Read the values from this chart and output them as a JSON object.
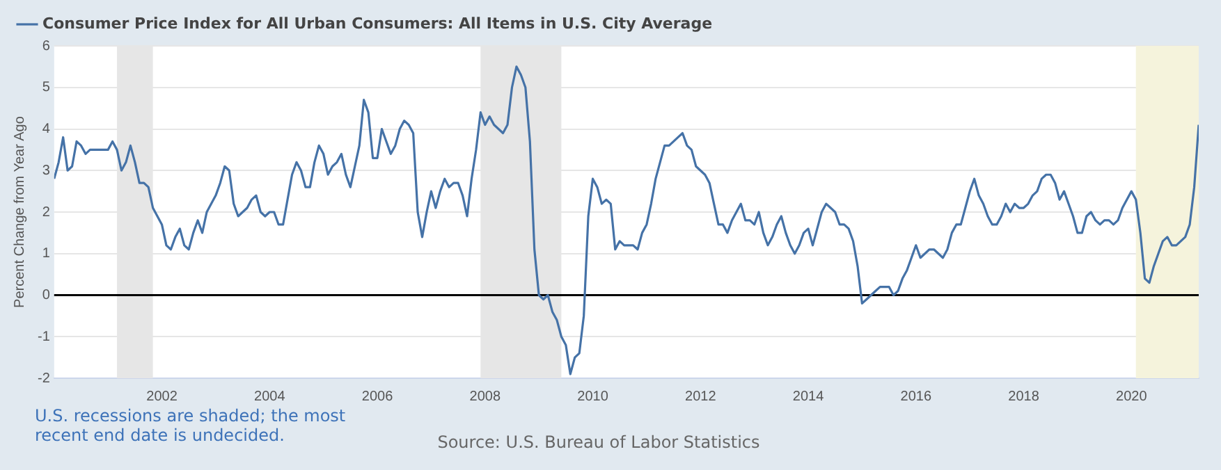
{
  "chart_data": {
    "type": "line",
    "ylabel": "Percent Change from Year Ago",
    "legend": "top left",
    "grid": "y",
    "marker": "none",
    "line_style": "solid",
    "xlim": [
      "2000-01",
      "2021-04"
    ],
    "xticks": [
      "2002",
      "2004",
      "2006",
      "2008",
      "2010",
      "2012",
      "2014",
      "2016",
      "2018",
      "2020"
    ],
    "ylim": [
      -2,
      6
    ],
    "yticks": [
      -2,
      -1,
      0,
      1,
      2,
      3,
      4,
      5,
      6
    ],
    "x": [
      "2000-01",
      "2000-02",
      "2000-03",
      "2000-04",
      "2000-05",
      "2000-06",
      "2000-07",
      "2000-08",
      "2000-09",
      "2000-10",
      "2000-11",
      "2000-12",
      "2001-01",
      "2001-02",
      "2001-03",
      "2001-04",
      "2001-05",
      "2001-06",
      "2001-07",
      "2001-08",
      "2001-09",
      "2001-10",
      "2001-11",
      "2001-12",
      "2002-01",
      "2002-02",
      "2002-03",
      "2002-04",
      "2002-05",
      "2002-06",
      "2002-07",
      "2002-08",
      "2002-09",
      "2002-10",
      "2002-11",
      "2002-12",
      "2003-01",
      "2003-02",
      "2003-03",
      "2003-04",
      "2003-05",
      "2003-06",
      "2003-07",
      "2003-08",
      "2003-09",
      "2003-10",
      "2003-11",
      "2003-12",
      "2004-01",
      "2004-02",
      "2004-03",
      "2004-04",
      "2004-05",
      "2004-06",
      "2004-07",
      "2004-08",
      "2004-09",
      "2004-10",
      "2004-11",
      "2004-12",
      "2005-01",
      "2005-02",
      "2005-03",
      "2005-04",
      "2005-05",
      "2005-06",
      "2005-07",
      "2005-08",
      "2005-09",
      "2005-10",
      "2005-11",
      "2005-12",
      "2006-01",
      "2006-02",
      "2006-03",
      "2006-04",
      "2006-05",
      "2006-06",
      "2006-07",
      "2006-08",
      "2006-09",
      "2006-10",
      "2006-11",
      "2006-12",
      "2007-01",
      "2007-02",
      "2007-03",
      "2007-04",
      "2007-05",
      "2007-06",
      "2007-07",
      "2007-08",
      "2007-09",
      "2007-10",
      "2007-11",
      "2007-12",
      "2008-01",
      "2008-02",
      "2008-03",
      "2008-04",
      "2008-05",
      "2008-06",
      "2008-07",
      "2008-08",
      "2008-09",
      "2008-10",
      "2008-11",
      "2008-12",
      "2009-01",
      "2009-02",
      "2009-03",
      "2009-04",
      "2009-05",
      "2009-06",
      "2009-07",
      "2009-08",
      "2009-09",
      "2009-10",
      "2009-11",
      "2009-12",
      "2010-01",
      "2010-02",
      "2010-03",
      "2010-04",
      "2010-05",
      "2010-06",
      "2010-07",
      "2010-08",
      "2010-09",
      "2010-10",
      "2010-11",
      "2010-12",
      "2011-01",
      "2011-02",
      "2011-03",
      "2011-04",
      "2011-05",
      "2011-06",
      "2011-07",
      "2011-08",
      "2011-09",
      "2011-10",
      "2011-11",
      "2011-12",
      "2012-01",
      "2012-02",
      "2012-03",
      "2012-04",
      "2012-05",
      "2012-06",
      "2012-07",
      "2012-08",
      "2012-09",
      "2012-10",
      "2012-11",
      "2012-12",
      "2013-01",
      "2013-02",
      "2013-03",
      "2013-04",
      "2013-05",
      "2013-06",
      "2013-07",
      "2013-08",
      "2013-09",
      "2013-10",
      "2013-11",
      "2013-12",
      "2014-01",
      "2014-02",
      "2014-03",
      "2014-04",
      "2014-05",
      "2014-06",
      "2014-07",
      "2014-08",
      "2014-09",
      "2014-10",
      "2014-11",
      "2014-12",
      "2015-01",
      "2015-02",
      "2015-03",
      "2015-04",
      "2015-05",
      "2015-06",
      "2015-07",
      "2015-08",
      "2015-09",
      "2015-10",
      "2015-11",
      "2015-12",
      "2016-01",
      "2016-02",
      "2016-03",
      "2016-04",
      "2016-05",
      "2016-06",
      "2016-07",
      "2016-08",
      "2016-09",
      "2016-10",
      "2016-11",
      "2016-12",
      "2017-01",
      "2017-02",
      "2017-03",
      "2017-04",
      "2017-05",
      "2017-06",
      "2017-07",
      "2017-08",
      "2017-09",
      "2017-10",
      "2017-11",
      "2017-12",
      "2018-01",
      "2018-02",
      "2018-03",
      "2018-04",
      "2018-05",
      "2018-06",
      "2018-07",
      "2018-08",
      "2018-09",
      "2018-10",
      "2018-11",
      "2018-12",
      "2019-01",
      "2019-02",
      "2019-03",
      "2019-04",
      "2019-05",
      "2019-06",
      "2019-07",
      "2019-08",
      "2019-09",
      "2019-10",
      "2019-11",
      "2019-12",
      "2020-01",
      "2020-02",
      "2020-03",
      "2020-04",
      "2020-05",
      "2020-06",
      "2020-07",
      "2020-08",
      "2020-09",
      "2020-10",
      "2020-11",
      "2020-12",
      "2021-01",
      "2021-02",
      "2021-03",
      "2021-04"
    ],
    "series": [
      {
        "name": "Consumer Price Index for All Urban Consumers: All Items in U.S. City Average",
        "color": "#4572a7",
        "values": [
          2.8,
          3.2,
          3.8,
          3.0,
          3.1,
          3.7,
          3.6,
          3.4,
          3.5,
          3.5,
          3.5,
          3.5,
          3.5,
          3.7,
          3.5,
          3.0,
          3.2,
          3.6,
          3.2,
          2.7,
          2.7,
          2.6,
          2.1,
          1.9,
          1.7,
          1.2,
          1.1,
          1.4,
          1.6,
          1.2,
          1.1,
          1.5,
          1.8,
          1.5,
          2.0,
          2.2,
          2.4,
          2.7,
          3.1,
          3.0,
          2.2,
          1.9,
          2.0,
          2.1,
          2.3,
          2.4,
          2.0,
          1.9,
          2.0,
          2.0,
          1.7,
          1.7,
          2.3,
          2.9,
          3.2,
          3.0,
          2.6,
          2.6,
          3.2,
          3.6,
          3.4,
          2.9,
          3.1,
          3.2,
          3.4,
          2.9,
          2.6,
          3.1,
          3.6,
          4.7,
          4.4,
          3.3,
          3.3,
          4.0,
          3.7,
          3.4,
          3.6,
          4.0,
          4.2,
          4.1,
          3.9,
          2.0,
          1.4,
          2.0,
          2.5,
          2.1,
          2.5,
          2.8,
          2.6,
          2.7,
          2.7,
          2.4,
          1.9,
          2.8,
          3.5,
          4.4,
          4.1,
          4.3,
          4.1,
          4.0,
          3.9,
          4.1,
          5.0,
          5.5,
          5.3,
          5.0,
          3.7,
          1.1,
          0.0,
          -0.1,
          0.0,
          -0.4,
          -0.6,
          -1.0,
          -1.2,
          -1.9,
          -1.5,
          -1.4,
          -0.5,
          1.9,
          2.8,
          2.6,
          2.2,
          2.3,
          2.2,
          1.1,
          1.3,
          1.2,
          1.2,
          1.2,
          1.1,
          1.5,
          1.7,
          2.2,
          2.8,
          3.2,
          3.6,
          3.6,
          3.7,
          3.8,
          3.9,
          3.6,
          3.5,
          3.1,
          3.0,
          2.9,
          2.7,
          2.2,
          1.7,
          1.7,
          1.5,
          1.8,
          2.0,
          2.2,
          1.8,
          1.8,
          1.7,
          2.0,
          1.5,
          1.2,
          1.4,
          1.7,
          1.9,
          1.5,
          1.2,
          1.0,
          1.2,
          1.5,
          1.6,
          1.2,
          1.6,
          2.0,
          2.2,
          2.1,
          2.0,
          1.7,
          1.7,
          1.6,
          1.3,
          0.7,
          -0.2,
          -0.1,
          0.0,
          0.1,
          0.2,
          0.2,
          0.2,
          0.0,
          0.1,
          0.4,
          0.6,
          0.9,
          1.2,
          0.9,
          1.0,
          1.1,
          1.1,
          1.0,
          0.9,
          1.1,
          1.5,
          1.7,
          1.7,
          2.1,
          2.5,
          2.8,
          2.4,
          2.2,
          1.9,
          1.7,
          1.7,
          1.9,
          2.2,
          2.0,
          2.2,
          2.1,
          2.1,
          2.2,
          2.4,
          2.5,
          2.8,
          2.9,
          2.9,
          2.7,
          2.3,
          2.5,
          2.2,
          1.9,
          1.5,
          1.5,
          1.9,
          2.0,
          1.8,
          1.7,
          1.8,
          1.8,
          1.7,
          1.8,
          2.1,
          2.3,
          2.5,
          2.3,
          1.5,
          0.4,
          0.3,
          0.7,
          1.0,
          1.3,
          1.4,
          1.2,
          1.2,
          1.3,
          1.4,
          1.7,
          2.6,
          4.1
        ]
      }
    ],
    "bands": [
      {
        "axis": "x",
        "from": "2001-03",
        "to": "2001-11",
        "color": "#e6e6e6"
      },
      {
        "axis": "x",
        "from": "2007-12",
        "to": "2009-06",
        "color": "#e6e6e6"
      },
      {
        "axis": "x",
        "from": "2020-02",
        "to": "2021-04",
        "color": "#f5f3dc"
      }
    ],
    "ref_lines": [
      {
        "axis": "y",
        "value": 0,
        "color": "#000000",
        "line_style": "solid"
      }
    ],
    "annotations": [
      "U.S. recessions are shaded; the most recent end date is undecided.",
      "Source: U.S. Bureau of Labor Statistics"
    ]
  }
}
